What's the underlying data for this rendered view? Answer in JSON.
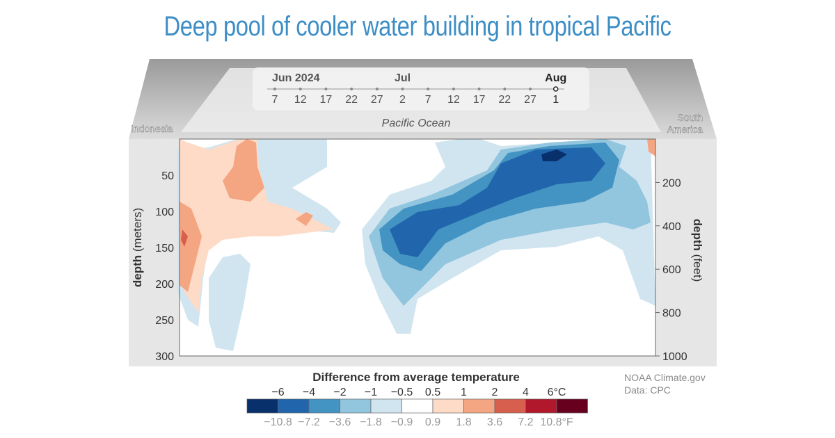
{
  "title": "Deep pool of cooler water building in tropical Pacific",
  "timeline": {
    "months": [
      "Jun 2024",
      "Jul",
      "Aug"
    ],
    "days": [
      "7",
      "12",
      "17",
      "22",
      "27",
      "2",
      "7",
      "12",
      "17",
      "22",
      "27",
      "1"
    ],
    "selected_index": 11
  },
  "map_labels": {
    "left": "Indonesia",
    "center": "Pacific Ocean",
    "right_line1": "South",
    "right_line2": "America"
  },
  "credit": {
    "line1": "NOAA Climate.gov",
    "line2": "Data: CPC"
  },
  "chart_data": {
    "type": "heatmap",
    "ylabel_left": {
      "bold": "depth",
      "rest": " (meters)"
    },
    "ylabel_right": {
      "bold": "depth",
      "rest": " (feet)"
    },
    "left_ticks": [
      50,
      100,
      150,
      200,
      250,
      300
    ],
    "right_ticks": [
      200,
      400,
      600,
      800,
      1000
    ],
    "ylim_m": [
      0,
      300
    ],
    "ylim_ft": [
      0,
      1000
    ],
    "legend": {
      "title": "Difference from average temperature",
      "celsius_labels": [
        "−6",
        "−4",
        "−2",
        "−1",
        "−0.5",
        "0.5",
        "1",
        "2",
        "4",
        "6°C"
      ],
      "fahrenheit_labels": [
        "−10.8",
        "−7.2",
        "−3.6",
        "−1.8",
        "−0.9",
        "0.9",
        "1.8",
        "3.6",
        "7.2",
        "10.8°F"
      ],
      "colors": [
        "#08306b",
        "#2166ac",
        "#4393c3",
        "#92c5de",
        "#d1e5f0",
        "#ffffff",
        "#fddbc7",
        "#f4a582",
        "#d6604d",
        "#b2182b",
        "#67001f"
      ]
    }
  }
}
